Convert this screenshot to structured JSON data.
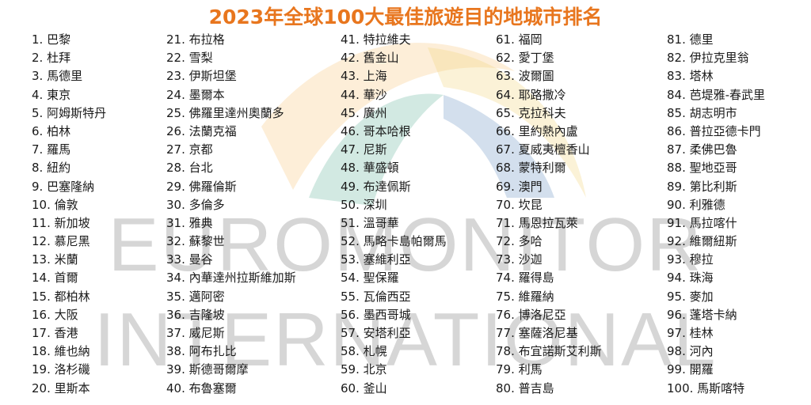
{
  "title": "2023年全球100大最佳旅遊目的地城市排名",
  "watermark": {
    "line1": "EUROMONITOR",
    "line2": "INTERNATIONAL",
    "colors": [
      "#f6b04d",
      "#f3d47a",
      "#4aa68d",
      "#4f7fb8"
    ]
  },
  "columns": [
    [
      "1. 巴黎",
      "2. 杜拜",
      "3. 馬德里",
      "4. 東京",
      "5. 阿姆斯特丹",
      "6. 柏林",
      "7. 羅馬",
      "8. 紐約",
      "9. 巴塞隆納",
      "10. 倫敦",
      "11. 新加坡",
      "12. 慕尼黑",
      "13. 米蘭",
      "14. 首爾",
      "15. 都柏林",
      "16. 大阪",
      "17. 香港",
      "18. 維也納",
      "19. 洛杉磯",
      "20. 里斯本"
    ],
    [
      "21. 布拉格",
      "22. 雪梨",
      "23. 伊斯坦堡",
      "24. 墨爾本",
      "25. 佛羅里達州奧蘭多",
      "26. 法蘭克福",
      "27. 京都",
      "28. 台北",
      "29. 佛羅倫斯",
      "30. 多倫多",
      "31. 雅典",
      "32. 蘇黎世",
      "33. 曼谷",
      "34. 內華達州拉斯維加斯",
      "35. 邁阿密",
      "36. 吉隆坡",
      "37. 威尼斯",
      "38. 阿布扎比",
      "39. 斯德哥爾摩",
      "40. 布魯塞爾"
    ],
    [
      "41. 特拉維夫",
      "42. 舊金山",
      "43. 上海",
      "44. 華沙",
      "45. 廣州",
      "46. 哥本哈根",
      "47. 尼斯",
      "48. 華盛頓",
      "49. 布達佩斯",
      "50. 深圳",
      "51. 溫哥華",
      "52. 馬略卡島帕爾馬",
      "53. 塞維利亞",
      "54. 聖保羅",
      "55. 瓦倫西亞",
      "56. 墨西哥城",
      "57. 安塔利亞",
      "58. 札幌",
      "59. 北京",
      "60. 釜山"
    ],
    [
      "61. 福岡",
      "62. 愛丁堡",
      "63. 波爾圖",
      "64. 耶路撒冷",
      "65. 克拉科夫",
      "66. 里約熱內盧",
      "67. 夏威夷檀香山",
      "68. 蒙特利爾",
      "69. 澳門",
      "70. 坎昆",
      "71. 馬恩拉瓦萊",
      "72. 多哈",
      "73. 沙迦",
      "74. 羅得島",
      "75. 維羅納",
      "76. 博洛尼亞",
      "77. 塞薩洛尼基",
      "78. 布宜諾斯艾利斯",
      "79. 利馬",
      "80. 普吉島"
    ],
    [
      "81. 德里",
      "82. 伊拉克里翁",
      "83. 塔林",
      "84. 芭堤雅-春武里",
      "85. 胡志明市",
      "86. 普拉亞德卡門",
      "87. 柔佛巴魯",
      "88. 聖地亞哥",
      "89. 第比利斯",
      "90. 利雅德",
      "91. 馬拉喀什",
      "92. 維爾紐斯",
      "93. 穆拉",
      "94. 珠海",
      "95. 麥加",
      "96. 蓬塔卡納",
      "97. 桂林",
      "98. 河內",
      "99. 開羅",
      "100. 馬斯喀特"
    ]
  ]
}
